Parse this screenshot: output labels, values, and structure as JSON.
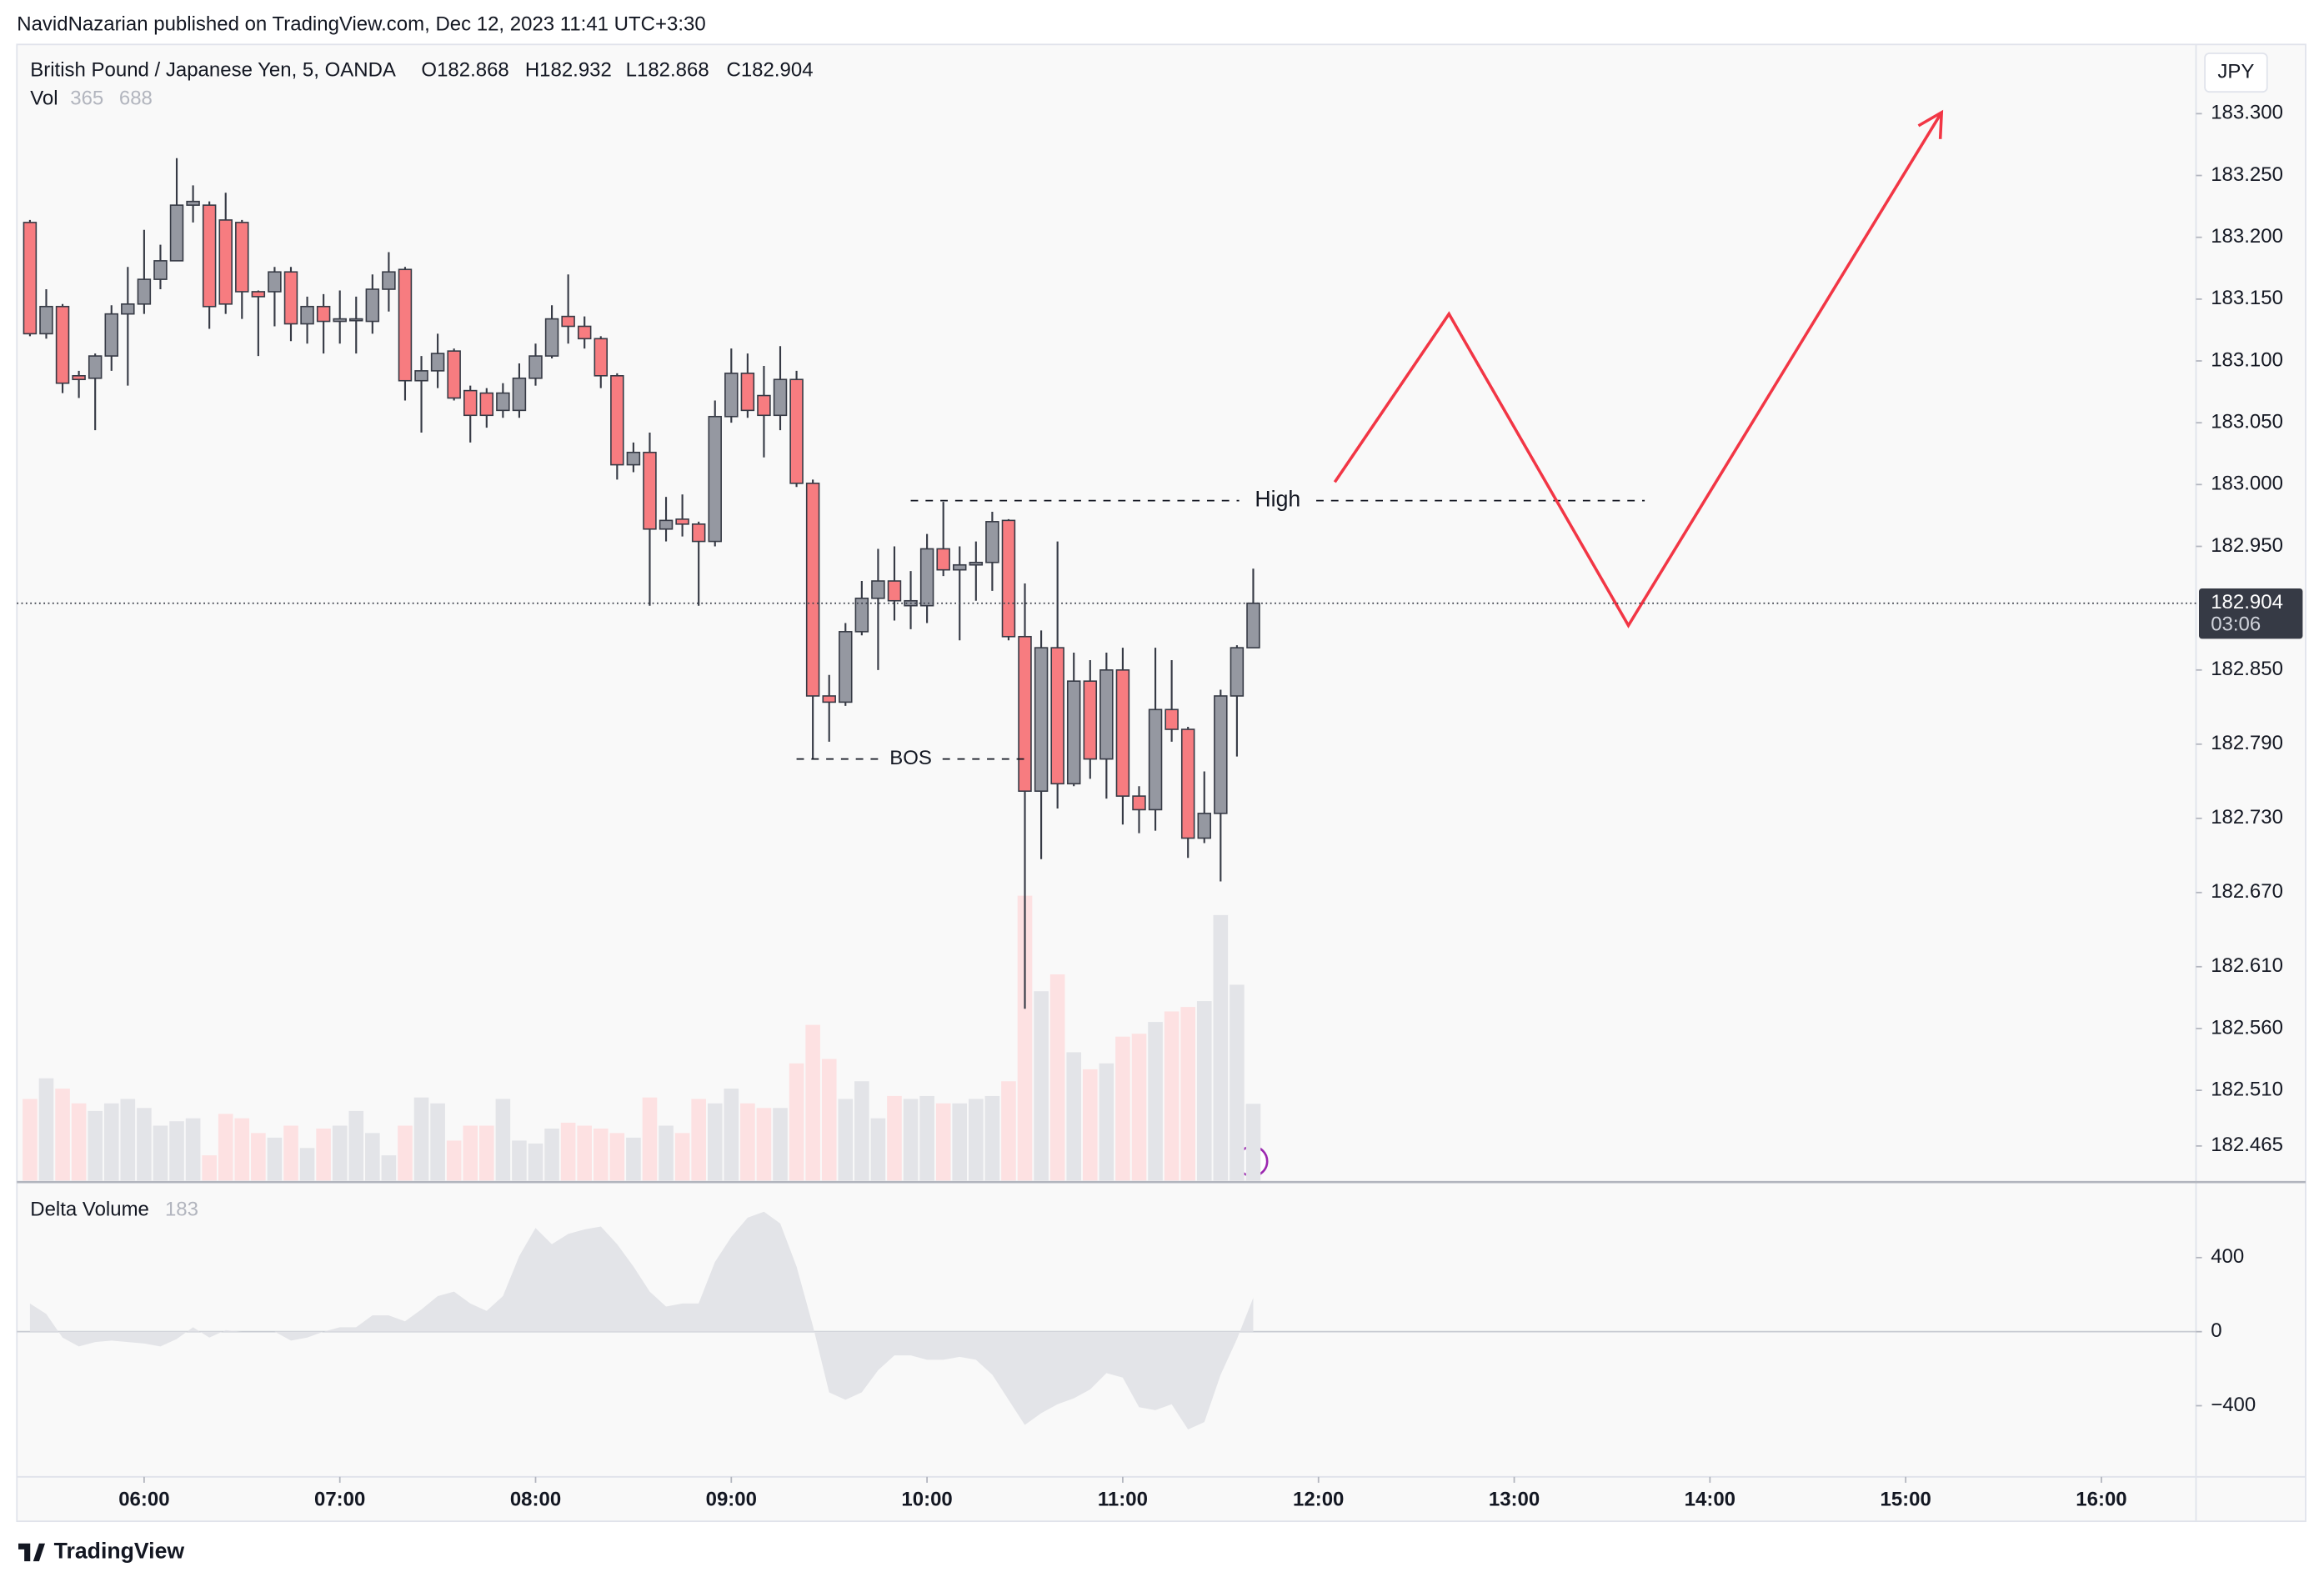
{
  "chart_data": {
    "type": "candlestick",
    "publisher": "NavidNazarian published on TradingView.com, Dec 12, 2023 11:41 UTC+3:30",
    "title": "British Pound / Japanese Yen, 5, OANDA",
    "ohlc_legend": [
      "O182.868",
      "H182.932",
      "L182.868",
      "C182.904"
    ],
    "volume_label": "Vol",
    "volume_value": "365",
    "volume_ma_value": "688",
    "delta_label": "Delta Volume",
    "delta_value": "183",
    "currency": "JPY",
    "last_price_label": "182.904",
    "countdown": "03:06",
    "brand": "TradingView",
    "up_color": "#9598a1",
    "down_color": "#f77c80",
    "xlim": [
      321,
      989
    ],
    "xticks": [
      {
        "value": 360,
        "label": "06:00"
      },
      {
        "value": 420,
        "label": "07:00"
      },
      {
        "value": 480,
        "label": "08:00"
      },
      {
        "value": 540,
        "label": "09:00"
      },
      {
        "value": 600,
        "label": "10:00"
      },
      {
        "value": 660,
        "label": "11:00"
      },
      {
        "value": 720,
        "label": "12:00"
      },
      {
        "value": 780,
        "label": "13:00"
      },
      {
        "value": 840,
        "label": "14:00"
      },
      {
        "value": 900,
        "label": "15:00"
      },
      {
        "value": 960,
        "label": "16:00"
      }
    ],
    "ylim": [
      182.437,
      183.356
    ],
    "yticks": [
      {
        "value": 183.3,
        "label": "183.300"
      },
      {
        "value": 183.25,
        "label": "183.250"
      },
      {
        "value": 183.2,
        "label": "183.200"
      },
      {
        "value": 183.15,
        "label": "183.150"
      },
      {
        "value": 183.1,
        "label": "183.100"
      },
      {
        "value": 183.05,
        "label": "183.050"
      },
      {
        "value": 183.0,
        "label": "183.000"
      },
      {
        "value": 182.95,
        "label": "182.950"
      },
      {
        "value": 182.85,
        "label": "182.850"
      },
      {
        "value": 182.79,
        "label": "182.790"
      },
      {
        "value": 182.73,
        "label": "182.730"
      },
      {
        "value": 182.67,
        "label": "182.670"
      },
      {
        "value": 182.61,
        "label": "182.610"
      },
      {
        "value": 182.56,
        "label": "182.560"
      },
      {
        "value": 182.51,
        "label": "182.510"
      },
      {
        "value": 182.465,
        "label": "182.465"
      }
    ],
    "vlim": [
      0,
      5400
    ],
    "delta_ylim": [
      -784,
      792
    ],
    "delta_yticks": [
      400,
      0,
      {
        "value": -400,
        "label": "−400"
      }
    ],
    "candles": [
      {
        "x": 325,
        "open": 183.212,
        "high": 183.214,
        "low": 183.12,
        "close": 183.122,
        "volume": 388,
        "delta": 152
      },
      {
        "x": 330,
        "open": 183.122,
        "high": 183.158,
        "low": 183.118,
        "close": 183.144,
        "volume": 486,
        "delta": 96
      },
      {
        "x": 335,
        "open": 183.144,
        "high": 183.146,
        "low": 183.074,
        "close": 183.082,
        "volume": 437,
        "delta": -32
      },
      {
        "x": 340,
        "open": 183.088,
        "high": 183.092,
        "low": 183.07,
        "close": 183.085,
        "volume": 367,
        "delta": -80
      },
      {
        "x": 345,
        "open": 183.086,
        "high": 183.106,
        "low": 183.044,
        "close": 183.104,
        "volume": 331,
        "delta": -56
      },
      {
        "x": 350,
        "open": 183.104,
        "high": 183.145,
        "low": 183.092,
        "close": 183.138,
        "volume": 367,
        "delta": -48
      },
      {
        "x": 355,
        "open": 183.138,
        "high": 183.176,
        "low": 183.08,
        "close": 183.146,
        "volume": 388,
        "delta": -56
      },
      {
        "x": 360,
        "open": 183.146,
        "high": 183.206,
        "low": 183.138,
        "close": 183.166,
        "volume": 345,
        "delta": -64
      },
      {
        "x": 365,
        "open": 183.166,
        "high": 183.194,
        "low": 183.158,
        "close": 183.181,
        "volume": 261,
        "delta": -80
      },
      {
        "x": 370,
        "open": 183.181,
        "high": 183.264,
        "low": 183.181,
        "close": 183.226,
        "volume": 282,
        "delta": -40
      },
      {
        "x": 375,
        "open": 183.226,
        "high": 183.242,
        "low": 183.212,
        "close": 183.229,
        "volume": 296,
        "delta": 24
      },
      {
        "x": 380,
        "open": 183.226,
        "high": 183.229,
        "low": 183.126,
        "close": 183.144,
        "volume": 120,
        "delta": -32
      },
      {
        "x": 385,
        "open": 183.214,
        "high": 183.236,
        "low": 183.138,
        "close": 183.146,
        "volume": 317,
        "delta": 8
      },
      {
        "x": 390,
        "open": 183.212,
        "high": 183.214,
        "low": 183.134,
        "close": 183.156,
        "volume": 296,
        "delta": 0
      },
      {
        "x": 395,
        "open": 183.156,
        "high": 183.157,
        "low": 183.104,
        "close": 183.152,
        "volume": 226,
        "delta": 0
      },
      {
        "x": 400,
        "open": 183.156,
        "high": 183.176,
        "low": 183.128,
        "close": 183.172,
        "volume": 204,
        "delta": 0
      },
      {
        "x": 405,
        "open": 183.172,
        "high": 183.176,
        "low": 183.116,
        "close": 183.13,
        "volume": 261,
        "delta": -48
      },
      {
        "x": 410,
        "open": 183.13,
        "high": 183.152,
        "low": 183.114,
        "close": 183.144,
        "volume": 155,
        "delta": -32
      },
      {
        "x": 415,
        "open": 183.144,
        "high": 183.154,
        "low": 183.106,
        "close": 183.132,
        "volume": 247,
        "delta": 0
      },
      {
        "x": 420,
        "open": 183.132,
        "high": 183.157,
        "low": 183.114,
        "close": 183.134,
        "volume": 261,
        "delta": 24
      },
      {
        "x": 425,
        "open": 183.133,
        "high": 183.152,
        "low": 183.106,
        "close": 183.134,
        "volume": 331,
        "delta": 24
      },
      {
        "x": 430,
        "open": 183.132,
        "high": 183.17,
        "low": 183.122,
        "close": 183.158,
        "volume": 226,
        "delta": 88
      },
      {
        "x": 435,
        "open": 183.158,
        "high": 183.188,
        "low": 183.14,
        "close": 183.172,
        "volume": 120,
        "delta": 88
      },
      {
        "x": 440,
        "open": 183.174,
        "high": 183.176,
        "low": 183.068,
        "close": 183.084,
        "volume": 261,
        "delta": 56
      },
      {
        "x": 445,
        "open": 183.084,
        "high": 183.104,
        "low": 183.042,
        "close": 183.092,
        "volume": 395,
        "delta": 120
      },
      {
        "x": 450,
        "open": 183.092,
        "high": 183.122,
        "low": 183.078,
        "close": 183.106,
        "volume": 367,
        "delta": 192
      },
      {
        "x": 455,
        "open": 183.108,
        "high": 183.11,
        "low": 183.068,
        "close": 183.07,
        "volume": 190,
        "delta": 216
      },
      {
        "x": 460,
        "open": 183.076,
        "high": 183.08,
        "low": 183.034,
        "close": 183.056,
        "volume": 261,
        "delta": 152
      },
      {
        "x": 465,
        "open": 183.074,
        "high": 183.078,
        "low": 183.046,
        "close": 183.056,
        "volume": 261,
        "delta": 112
      },
      {
        "x": 470,
        "open": 183.06,
        "high": 183.082,
        "low": 183.054,
        "close": 183.074,
        "volume": 388,
        "delta": 192
      },
      {
        "x": 475,
        "open": 183.06,
        "high": 183.098,
        "low": 183.054,
        "close": 183.086,
        "volume": 190,
        "delta": 408
      },
      {
        "x": 480,
        "open": 183.086,
        "high": 183.114,
        "low": 183.08,
        "close": 183.104,
        "volume": 176,
        "delta": 560
      },
      {
        "x": 485,
        "open": 183.104,
        "high": 183.145,
        "low": 183.102,
        "close": 183.134,
        "volume": 247,
        "delta": 472
      },
      {
        "x": 490,
        "open": 183.136,
        "high": 183.17,
        "low": 183.114,
        "close": 183.128,
        "volume": 275,
        "delta": 528
      },
      {
        "x": 495,
        "open": 183.128,
        "high": 183.136,
        "low": 183.11,
        "close": 183.118,
        "volume": 261,
        "delta": 552
      },
      {
        "x": 500,
        "open": 183.118,
        "high": 183.12,
        "low": 183.078,
        "close": 183.088,
        "volume": 247,
        "delta": 568
      },
      {
        "x": 505,
        "open": 183.088,
        "high": 183.09,
        "low": 183.004,
        "close": 183.016,
        "volume": 226,
        "delta": 472
      },
      {
        "x": 510,
        "open": 183.016,
        "high": 183.034,
        "low": 183.01,
        "close": 183.026,
        "volume": 204,
        "delta": 352
      },
      {
        "x": 515,
        "open": 183.026,
        "high": 183.042,
        "low": 182.902,
        "close": 182.964,
        "volume": 395,
        "delta": 216
      },
      {
        "x": 520,
        "open": 182.964,
        "high": 182.99,
        "low": 182.954,
        "close": 182.971,
        "volume": 261,
        "delta": 136
      },
      {
        "x": 525,
        "open": 182.972,
        "high": 182.992,
        "low": 182.958,
        "close": 182.968,
        "volume": 226,
        "delta": 152
      },
      {
        "x": 530,
        "open": 182.968,
        "high": 182.97,
        "low": 182.902,
        "close": 182.954,
        "volume": 388,
        "delta": 152
      },
      {
        "x": 535,
        "open": 182.954,
        "high": 183.068,
        "low": 182.95,
        "close": 183.055,
        "volume": 367,
        "delta": 376
      },
      {
        "x": 540,
        "open": 183.055,
        "high": 183.11,
        "low": 183.05,
        "close": 183.09,
        "volume": 437,
        "delta": 512
      },
      {
        "x": 545,
        "open": 183.09,
        "high": 183.106,
        "low": 183.054,
        "close": 183.06,
        "volume": 367,
        "delta": 616
      },
      {
        "x": 550,
        "open": 183.072,
        "high": 183.096,
        "low": 183.022,
        "close": 183.056,
        "volume": 345,
        "delta": 648
      },
      {
        "x": 555,
        "open": 183.056,
        "high": 183.112,
        "low": 183.044,
        "close": 183.085,
        "volume": 345,
        "delta": 584
      },
      {
        "x": 560,
        "open": 183.085,
        "high": 183.092,
        "low": 182.998,
        "close": 183.001,
        "volume": 557,
        "delta": 352
      },
      {
        "x": 565,
        "open": 183.001,
        "high": 183.004,
        "low": 182.778,
        "close": 182.829,
        "volume": 740,
        "delta": 32
      },
      {
        "x": 570,
        "open": 182.829,
        "high": 182.846,
        "low": 182.792,
        "close": 182.824,
        "volume": 578,
        "delta": -328
      },
      {
        "x": 575,
        "open": 182.824,
        "high": 182.888,
        "low": 182.821,
        "close": 182.881,
        "volume": 388,
        "delta": -368
      },
      {
        "x": 580,
        "open": 182.881,
        "high": 182.922,
        "low": 182.878,
        "close": 182.908,
        "volume": 472,
        "delta": -328
      },
      {
        "x": 585,
        "open": 182.908,
        "high": 182.948,
        "low": 182.85,
        "close": 182.922,
        "volume": 296,
        "delta": -208
      },
      {
        "x": 590,
        "open": 182.922,
        "high": 182.95,
        "low": 182.89,
        "close": 182.906,
        "volume": 402,
        "delta": -128
      },
      {
        "x": 595,
        "open": 182.902,
        "high": 182.93,
        "low": 182.883,
        "close": 182.906,
        "volume": 388,
        "delta": -128
      },
      {
        "x": 600,
        "open": 182.902,
        "high": 182.96,
        "low": 182.888,
        "close": 182.948,
        "volume": 402,
        "delta": -152
      },
      {
        "x": 605,
        "open": 182.948,
        "high": 182.986,
        "low": 182.926,
        "close": 182.931,
        "volume": 367,
        "delta": -152
      },
      {
        "x": 610,
        "open": 182.931,
        "high": 182.95,
        "low": 182.874,
        "close": 182.935,
        "volume": 367,
        "delta": -136
      },
      {
        "x": 615,
        "open": 182.935,
        "high": 182.954,
        "low": 182.906,
        "close": 182.937,
        "volume": 388,
        "delta": -152
      },
      {
        "x": 620,
        "open": 182.937,
        "high": 182.978,
        "low": 182.914,
        "close": 182.97,
        "volume": 402,
        "delta": -232
      },
      {
        "x": 625,
        "open": 182.971,
        "high": 182.972,
        "low": 182.874,
        "close": 182.877,
        "volume": 472,
        "delta": -368
      },
      {
        "x": 630,
        "open": 182.877,
        "high": 182.92,
        "low": 182.576,
        "close": 182.752,
        "volume": 1354,
        "delta": -504
      },
      {
        "x": 635,
        "open": 182.752,
        "high": 182.882,
        "low": 182.697,
        "close": 182.868,
        "volume": 900,
        "delta": -440
      },
      {
        "x": 640,
        "open": 182.868,
        "high": 182.954,
        "low": 182.738,
        "close": 182.758,
        "volume": 980,
        "delta": -392
      },
      {
        "x": 645,
        "open": 182.758,
        "high": 182.864,
        "low": 182.756,
        "close": 182.841,
        "volume": 610,
        "delta": -360
      },
      {
        "x": 650,
        "open": 182.841,
        "high": 182.858,
        "low": 182.762,
        "close": 182.778,
        "volume": 529,
        "delta": -312
      },
      {
        "x": 655,
        "open": 182.778,
        "high": 182.864,
        "low": 182.746,
        "close": 182.85,
        "volume": 557,
        "delta": -224
      },
      {
        "x": 660,
        "open": 182.85,
        "high": 182.868,
        "low": 182.725,
        "close": 182.748,
        "volume": 684,
        "delta": -248
      },
      {
        "x": 665,
        "open": 182.748,
        "high": 182.756,
        "low": 182.718,
        "close": 182.737,
        "volume": 698,
        "delta": -408
      },
      {
        "x": 670,
        "open": 182.737,
        "high": 182.868,
        "low": 182.72,
        "close": 182.818,
        "volume": 754,
        "delta": -424
      },
      {
        "x": 675,
        "open": 182.818,
        "high": 182.858,
        "low": 182.792,
        "close": 182.802,
        "volume": 804,
        "delta": -392
      },
      {
        "x": 680,
        "open": 182.802,
        "high": 182.804,
        "low": 182.698,
        "close": 182.714,
        "volume": 825,
        "delta": -528
      },
      {
        "x": 685,
        "open": 182.714,
        "high": 182.768,
        "low": 182.71,
        "close": 182.734,
        "volume": 853,
        "delta": -488
      },
      {
        "x": 690,
        "open": 182.734,
        "high": 182.834,
        "low": 182.679,
        "close": 182.829,
        "volume": 1262,
        "delta": -232
      },
      {
        "x": 695,
        "open": 182.829,
        "high": 182.87,
        "low": 182.78,
        "close": 182.868,
        "volume": 931,
        "delta": -40
      },
      {
        "x": 700,
        "open": 182.868,
        "high": 182.932,
        "low": 182.868,
        "close": 182.904,
        "volume": 365,
        "delta": 183
      }
    ],
    "annotations": [
      {
        "label": "High",
        "price": 182.987,
        "x_start": 595,
        "x_end": 820
      },
      {
        "label": "BOS",
        "price": 182.778,
        "x_start": 560,
        "x_end": 630
      }
    ],
    "projection": {
      "color": "#f23645",
      "points": [
        {
          "x": 725,
          "price": 183.002
        },
        {
          "x": 760,
          "price": 183.138
        },
        {
          "x": 815,
          "price": 182.886
        },
        {
          "x": 911,
          "price": 183.301
        }
      ]
    }
  }
}
